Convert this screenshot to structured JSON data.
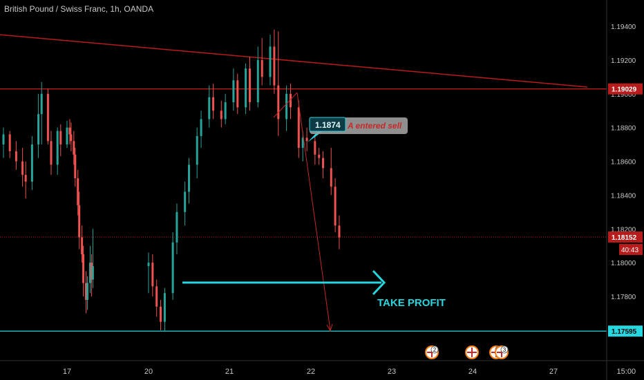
{
  "header": {
    "symbol_title": "British Pound / Swiss Franc, 1h, OANDA"
  },
  "annotations": {
    "take_profit_label": "TAKE PROFIT",
    "entry_callout_price": "1.1874",
    "entry_callout_text": "A entered sell",
    "countdown": "40:43"
  },
  "price_badges": [
    {
      "label": "1.19029",
      "color": "#b71c1c"
    },
    {
      "label": "1.18152",
      "color": "#b71c1c"
    },
    {
      "label": "1.17595",
      "color": "#26d7e0"
    }
  ],
  "events": [
    {
      "date": "22.5",
      "icon": "uk-flag-icon",
      "count": "2"
    },
    {
      "date": "24",
      "icon": "uk-flag-icon",
      "count": ""
    },
    {
      "date": "24.4",
      "icon": "uk-flag-icon",
      "count": "4"
    },
    {
      "date": "24.5",
      "icon": "uk-flag-icon",
      "count": "3"
    }
  ],
  "colors": {
    "background": "#000000",
    "up_candle": "#26a69a",
    "down_candle": "#ef5350",
    "trendline": "#b71c1c",
    "take_profit": "#26d7e0",
    "grid": "#1c1c1c"
  },
  "chart_data": {
    "type": "candlestick",
    "title": "British Pound / Swiss Franc, 1h, OANDA",
    "x_ticks": [
      "17",
      "20",
      "21",
      "22",
      "23",
      "24",
      "27",
      "15:00"
    ],
    "y_ticks": [
      "1.19400",
      "1.19200",
      "1.19000",
      "1.18800",
      "1.18600",
      "1.18400",
      "1.18200",
      "1.18000",
      "1.17800"
    ],
    "ylim": [
      1.1738,
      1.1962
    ],
    "grid": false,
    "horizontal_lines": [
      {
        "price": 1.19029,
        "label": "1.19029",
        "color": "#b71c1c",
        "style": "solid"
      },
      {
        "price": 1.18152,
        "label": "1.18152",
        "color": "#b71c1c",
        "style": "dotted"
      },
      {
        "price": 1.17595,
        "label": "1.17595",
        "color": "#26d7e0",
        "style": "solid"
      }
    ],
    "trendline": {
      "from": {
        "x": "16",
        "price": 1.1935
      },
      "to": {
        "x": "26.5",
        "price": 1.1904
      }
    },
    "candles": [
      {
        "x": "16.0",
        "o": 1.187,
        "h": 1.188,
        "l": 1.1862,
        "c": 1.1876
      },
      {
        "x": "16.1",
        "o": 1.1876,
        "h": 1.1878,
        "l": 1.1862,
        "c": 1.1866
      },
      {
        "x": "16.2",
        "o": 1.1866,
        "h": 1.1872,
        "l": 1.1855,
        "c": 1.186
      },
      {
        "x": "16.3",
        "o": 1.186,
        "h": 1.1868,
        "l": 1.1845,
        "c": 1.1852
      },
      {
        "x": "16.35",
        "o": 1.1852,
        "h": 1.186,
        "l": 1.1838,
        "c": 1.1848
      },
      {
        "x": "16.45",
        "o": 1.1848,
        "h": 1.1875,
        "l": 1.1843,
        "c": 1.187
      },
      {
        "x": "16.55",
        "o": 1.187,
        "h": 1.19,
        "l": 1.1862,
        "c": 1.1888
      },
      {
        "x": "16.6",
        "o": 1.1888,
        "h": 1.1907,
        "l": 1.187,
        "c": 1.19
      },
      {
        "x": "16.7",
        "o": 1.19,
        "h": 1.1903,
        "l": 1.187,
        "c": 1.1872
      },
      {
        "x": "16.75",
        "o": 1.1872,
        "h": 1.1878,
        "l": 1.1852,
        "c": 1.1858
      },
      {
        "x": "16.85",
        "o": 1.1858,
        "h": 1.188,
        "l": 1.1852,
        "c": 1.1878
      },
      {
        "x": "16.9",
        "o": 1.1878,
        "h": 1.1882,
        "l": 1.1863,
        "c": 1.187
      },
      {
        "x": "17.0",
        "o": 1.187,
        "h": 1.1884,
        "l": 1.1868,
        "c": 1.188
      },
      {
        "x": "17.1",
        "o": 1.188,
        "h": 1.1885,
        "l": 1.187,
        "c": 1.1876
      },
      {
        "x": "17.15",
        "o": 1.1876,
        "h": 1.1883,
        "l": 1.1866,
        "c": 1.1872
      },
      {
        "x": "17.25",
        "o": 1.1872,
        "h": 1.1878,
        "l": 1.1858,
        "c": 1.1864
      },
      {
        "x": "17.3",
        "o": 1.1864,
        "h": 1.1868,
        "l": 1.1845,
        "c": 1.185
      },
      {
        "x": "17.4",
        "o": 1.185,
        "h": 1.1855,
        "l": 1.1828,
        "c": 1.1834
      },
      {
        "x": "17.45",
        "o": 1.1834,
        "h": 1.1842,
        "l": 1.1808,
        "c": 1.1815
      },
      {
        "x": "17.55",
        "o": 1.1815,
        "h": 1.1822,
        "l": 1.18,
        "c": 1.1805
      },
      {
        "x": "17.6",
        "o": 1.1805,
        "h": 1.181,
        "l": 1.178,
        "c": 1.1788
      },
      {
        "x": "17.7",
        "o": 1.1788,
        "h": 1.1795,
        "l": 1.177,
        "c": 1.1778
      },
      {
        "x": "17.75",
        "o": 1.1778,
        "h": 1.1792,
        "l": 1.1772,
        "c": 1.1788
      },
      {
        "x": "17.85",
        "o": 1.1788,
        "h": 1.181,
        "l": 1.1782,
        "c": 1.18
      },
      {
        "x": "17.9",
        "o": 1.18,
        "h": 1.1805,
        "l": 1.178,
        "c": 1.179
      },
      {
        "x": "17.95",
        "o": 1.179,
        "h": 1.182,
        "l": 1.1785,
        "c": 1.1798
      },
      {
        "x": "20.0",
        "o": 1.1798,
        "h": 1.1806,
        "l": 1.1782,
        "c": 1.18
      },
      {
        "x": "20.05",
        "o": 1.18,
        "h": 1.1805,
        "l": 1.178,
        "c": 1.1786
      },
      {
        "x": "20.1",
        "o": 1.1786,
        "h": 1.179,
        "l": 1.1768,
        "c": 1.1774
      },
      {
        "x": "20.15",
        "o": 1.1774,
        "h": 1.1778,
        "l": 1.176,
        "c": 1.1765
      },
      {
        "x": "20.2",
        "o": 1.1765,
        "h": 1.1785,
        "l": 1.1759,
        "c": 1.1782
      },
      {
        "x": "20.3",
        "o": 1.1782,
        "h": 1.1818,
        "l": 1.1778,
        "c": 1.1812
      },
      {
        "x": "20.35",
        "o": 1.1812,
        "h": 1.1835,
        "l": 1.1805,
        "c": 1.183
      },
      {
        "x": "20.45",
        "o": 1.183,
        "h": 1.1848,
        "l": 1.1822,
        "c": 1.1842
      },
      {
        "x": "20.5",
        "o": 1.1842,
        "h": 1.1862,
        "l": 1.1835,
        "c": 1.1858
      },
      {
        "x": "20.6",
        "o": 1.1858,
        "h": 1.188,
        "l": 1.185,
        "c": 1.1875
      },
      {
        "x": "20.65",
        "o": 1.1875,
        "h": 1.189,
        "l": 1.1868,
        "c": 1.1885
      },
      {
        "x": "20.75",
        "o": 1.1885,
        "h": 1.1905,
        "l": 1.188,
        "c": 1.1898
      },
      {
        "x": "20.8",
        "o": 1.1898,
        "h": 1.1906,
        "l": 1.1885,
        "c": 1.189
      },
      {
        "x": "20.9",
        "o": 1.189,
        "h": 1.1896,
        "l": 1.188,
        "c": 1.1885
      },
      {
        "x": "20.95",
        "o": 1.1885,
        "h": 1.19,
        "l": 1.1882,
        "c": 1.1895
      },
      {
        "x": "21.05",
        "o": 1.1895,
        "h": 1.1915,
        "l": 1.189,
        "c": 1.1908
      },
      {
        "x": "21.1",
        "o": 1.1908,
        "h": 1.1912,
        "l": 1.1888,
        "c": 1.1892
      },
      {
        "x": "21.2",
        "o": 1.1892,
        "h": 1.1918,
        "l": 1.1888,
        "c": 1.1915
      },
      {
        "x": "21.25",
        "o": 1.1915,
        "h": 1.1922,
        "l": 1.189,
        "c": 1.1895
      },
      {
        "x": "21.35",
        "o": 1.1895,
        "h": 1.1928,
        "l": 1.1892,
        "c": 1.192
      },
      {
        "x": "21.4",
        "o": 1.192,
        "h": 1.1933,
        "l": 1.1905,
        "c": 1.191
      },
      {
        "x": "21.5",
        "o": 1.191,
        "h": 1.1935,
        "l": 1.1905,
        "c": 1.1928
      },
      {
        "x": "21.55",
        "o": 1.1928,
        "h": 1.1938,
        "l": 1.19,
        "c": 1.1905
      },
      {
        "x": "21.6",
        "o": 1.1905,
        "h": 1.1937,
        "l": 1.1875,
        "c": 1.1885
      },
      {
        "x": "21.7",
        "o": 1.1885,
        "h": 1.1905,
        "l": 1.1878,
        "c": 1.19
      },
      {
        "x": "21.75",
        "o": 1.19,
        "h": 1.1906,
        "l": 1.1885,
        "c": 1.1892
      },
      {
        "x": "21.85",
        "o": 1.1892,
        "h": 1.1896,
        "l": 1.1862,
        "c": 1.1868
      },
      {
        "x": "21.9",
        "o": 1.1868,
        "h": 1.1878,
        "l": 1.186,
        "c": 1.1874
      },
      {
        "x": "21.95",
        "o": 1.1874,
        "h": 1.188,
        "l": 1.1866,
        "c": 1.1872
      },
      {
        "x": "22.05",
        "o": 1.1872,
        "h": 1.1876,
        "l": 1.1858,
        "c": 1.1864
      },
      {
        "x": "22.1",
        "o": 1.1864,
        "h": 1.1868,
        "l": 1.1858,
        "c": 1.1862
      },
      {
        "x": "22.15",
        "o": 1.1862,
        "h": 1.1866,
        "l": 1.185,
        "c": 1.1856
      },
      {
        "x": "22.25",
        "o": 1.1856,
        "h": 1.1868,
        "l": 1.184,
        "c": 1.1845
      },
      {
        "x": "22.3",
        "o": 1.1845,
        "h": 1.185,
        "l": 1.1818,
        "c": 1.1822
      },
      {
        "x": "22.35",
        "o": 1.1822,
        "h": 1.1828,
        "l": 1.1808,
        "c": 1.1815
      }
    ]
  }
}
